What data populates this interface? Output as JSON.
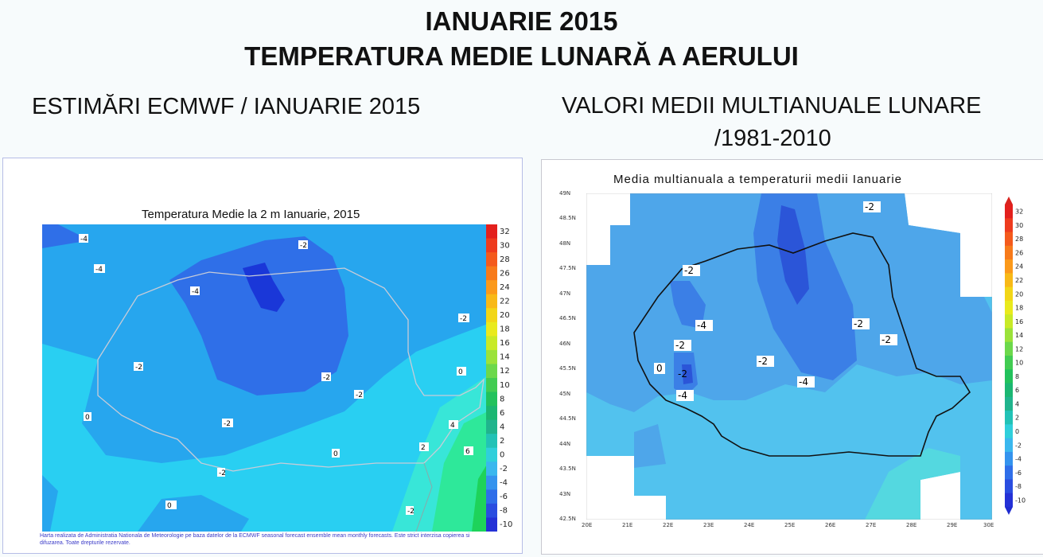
{
  "header": {
    "title_line1": "IANUARIE 2015",
    "title_line2": "TEMPERATURA MEDIE LUNARĂ A AERULUI"
  },
  "left": {
    "subtitle": "ESTIMĂRI ECMWF / IANUARIE 2015",
    "map_title": "Temperatura Medie la 2 m Ianuarie, 2015",
    "footer": "Harta realizata de Administratia Nationala de Meteorologie pe baza datelor de la ECMWF seasonal forecast ensemble mean monthly forecasts. Este strict interzisa copierea si difuzarea. Toate drepturile rezervate.",
    "contour_labels": [
      "-4",
      "-2",
      "-4",
      "-4",
      "-2",
      "-2",
      "-2",
      "-2",
      "0",
      "-2",
      "0",
      "0",
      "-2",
      "4",
      "2",
      "6",
      "0",
      "-2"
    ],
    "colorbar": [
      "32",
      "30",
      "28",
      "26",
      "24",
      "22",
      "20",
      "18",
      "16",
      "14",
      "12",
      "10",
      "8",
      "6",
      "4",
      "2",
      "0",
      "-2",
      "-4",
      "-6",
      "-8",
      "-10"
    ]
  },
  "right": {
    "subtitle_line1": "VALORI MEDII MULTIANUALE LUNARE",
    "subtitle_line2": "/1981-2010",
    "map_title": "Media multianuala a temperaturii medii Ianuarie",
    "contour_labels": [
      "-2",
      "-2",
      "-4",
      "-2",
      "-2",
      "-2",
      "-2",
      "0",
      "-2",
      "-4",
      "-4"
    ],
    "lat_labels": [
      "49N",
      "48.5N",
      "48N",
      "47.5N",
      "47N",
      "46.5N",
      "46N",
      "45.5N",
      "45N",
      "44.5N",
      "44N",
      "43.5N",
      "43N",
      "42.5N"
    ],
    "lon_labels": [
      "20E",
      "21E",
      "22E",
      "23E",
      "24E",
      "25E",
      "26E",
      "27E",
      "28E",
      "29E",
      "30E"
    ],
    "colorbar": [
      "32",
      "30",
      "28",
      "26",
      "24",
      "22",
      "20",
      "18",
      "16",
      "14",
      "12",
      "10",
      "8",
      "6",
      "4",
      "2",
      "0",
      "-2",
      "-4",
      "-6",
      "-8",
      "-10"
    ]
  },
  "colors": {
    "c_m6": "#1a37d8",
    "c_m4": "#2f6fe8",
    "c_m2": "#27a6ee",
    "c_0": "#29cff2",
    "c_2": "#38e6d8",
    "c_4": "#2ee89a",
    "c_6": "#1ed35a",
    "r_m6": "#2b55d8",
    "r_m4": "#3b7fe6",
    "r_m2": "#4ea6ea",
    "r_0": "#52c2ee",
    "r_2": "#54d8e0"
  }
}
